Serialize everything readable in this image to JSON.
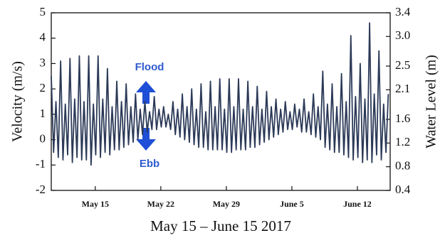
{
  "chart_data": {
    "type": "line",
    "xlabel": "May 15 – June 15 2017",
    "ylabel": "Velocity (m/s)",
    "y2label": "Water Level (m)",
    "annotations": [
      "Flood",
      "Ebb"
    ],
    "xlim": [
      0,
      36.2
    ],
    "xticks": [
      {
        "value": 4.7,
        "label": "May 15"
      },
      {
        "value": 11.7,
        "label": "May 22"
      },
      {
        "value": 18.7,
        "label": "May 29"
      },
      {
        "value": 25.7,
        "label": "June 5"
      },
      {
        "value": 32.7,
        "label": "June 12"
      }
    ],
    "ylim": [
      -2,
      5
    ],
    "yticks": [
      -2,
      -1,
      0,
      1,
      2,
      3,
      4,
      5
    ],
    "y2lim": [
      0.4,
      3.4
    ],
    "y2ticks": [
      0.4,
      0.8,
      1.2,
      1.6,
      2.1,
      2.5,
      {
        "value": 3.0,
        "label": "3.0"
      },
      3.4
    ],
    "x": [
      0,
      0.25,
      0.5,
      0.75,
      1,
      1.25,
      1.5,
      1.75,
      2,
      2.25,
      2.5,
      2.75,
      3,
      3.25,
      3.5,
      3.75,
      4,
      4.25,
      4.5,
      4.75,
      5,
      5.25,
      5.5,
      5.75,
      6,
      6.25,
      6.5,
      6.75,
      7,
      7.25,
      7.5,
      7.75,
      8,
      8.25,
      8.5,
      8.75,
      9,
      9.25,
      9.5,
      9.75,
      10,
      10.25,
      10.5,
      10.75,
      11,
      11.25,
      11.5,
      11.75,
      12,
      12.25,
      12.5,
      12.75,
      13,
      13.25,
      13.5,
      13.75,
      14,
      14.25,
      14.5,
      14.75,
      15,
      15.25,
      15.5,
      15.75,
      16,
      16.25,
      16.5,
      16.75,
      17,
      17.25,
      17.5,
      17.75,
      18,
      18.25,
      18.5,
      18.75,
      19,
      19.25,
      19.5,
      19.75,
      20,
      20.25,
      20.5,
      20.75,
      21,
      21.25,
      21.5,
      21.75,
      22,
      22.25,
      22.5,
      22.75,
      23,
      23.25,
      23.5,
      23.75,
      24,
      24.25,
      24.5,
      24.75,
      25,
      25.25,
      25.5,
      25.75,
      26,
      26.25,
      26.5,
      26.75,
      27,
      27.25,
      27.5,
      27.75,
      28,
      28.25,
      28.5,
      28.75,
      29,
      29.25,
      29.5,
      29.75,
      30,
      30.25,
      30.5,
      30.75,
      31,
      31.25,
      31.5,
      31.75,
      32,
      32.25,
      32.5,
      32.75,
      33,
      33.25,
      33.5,
      33.75,
      34,
      34.25,
      34.5,
      34.75,
      35,
      35.25,
      35.5,
      35.75,
      36
    ],
    "series": [
      {
        "color": "#2c3a58",
        "values": [
          2.5,
          -0.5,
          1.5,
          -0.7,
          3.1,
          -0.8,
          1.4,
          -0.6,
          3.2,
          -0.9,
          1.6,
          -0.7,
          3.3,
          -0.8,
          1.5,
          -0.8,
          3.3,
          -1.0,
          1.4,
          -0.6,
          3.3,
          -0.7,
          1.6,
          -0.5,
          2.8,
          -0.6,
          1.3,
          -0.4,
          2.3,
          -0.4,
          1.5,
          -0.3,
          2.2,
          -0.2,
          1.3,
          -0.1,
          1.8,
          0.0,
          1.2,
          0.2,
          1.5,
          0.3,
          1.1,
          0.4,
          1.7,
          0.4,
          1.2,
          0.5,
          1.3,
          0.5,
          1.0,
          0.4,
          1.5,
          0.2,
          1.2,
          0.1,
          1.8,
          0.0,
          1.3,
          -0.1,
          2.0,
          -0.2,
          1.2,
          -0.3,
          2.2,
          -0.3,
          1.1,
          -0.4,
          2.3,
          -0.4,
          1.3,
          -0.4,
          2.4,
          -0.4,
          1.2,
          -0.5,
          2.4,
          -0.5,
          1.3,
          -0.4,
          2.4,
          -0.4,
          1.2,
          -0.4,
          2.3,
          -0.3,
          1.3,
          -0.3,
          2.1,
          -0.2,
          1.2,
          -0.1,
          1.9,
          0.0,
          1.3,
          0.1,
          1.6,
          0.2,
          1.2,
          0.3,
          1.5,
          0.4,
          1.1,
          0.4,
          1.4,
          0.5,
          1.2,
          0.3,
          1.6,
          0.3,
          1.1,
          0.2,
          1.8,
          0.1,
          1.3,
          0.0,
          2.7,
          -0.3,
          1.4,
          -0.4,
          2.2,
          -0.5,
          1.3,
          -0.5,
          2.6,
          -0.6,
          1.5,
          -0.7,
          4.1,
          -0.8,
          1.7,
          -0.7,
          3.0,
          -0.9,
          1.6,
          -0.8,
          4.6,
          -0.9,
          1.8,
          -0.6,
          3.5,
          -0.8,
          1.4,
          -0.5,
          1.8
        ]
      }
    ]
  }
}
